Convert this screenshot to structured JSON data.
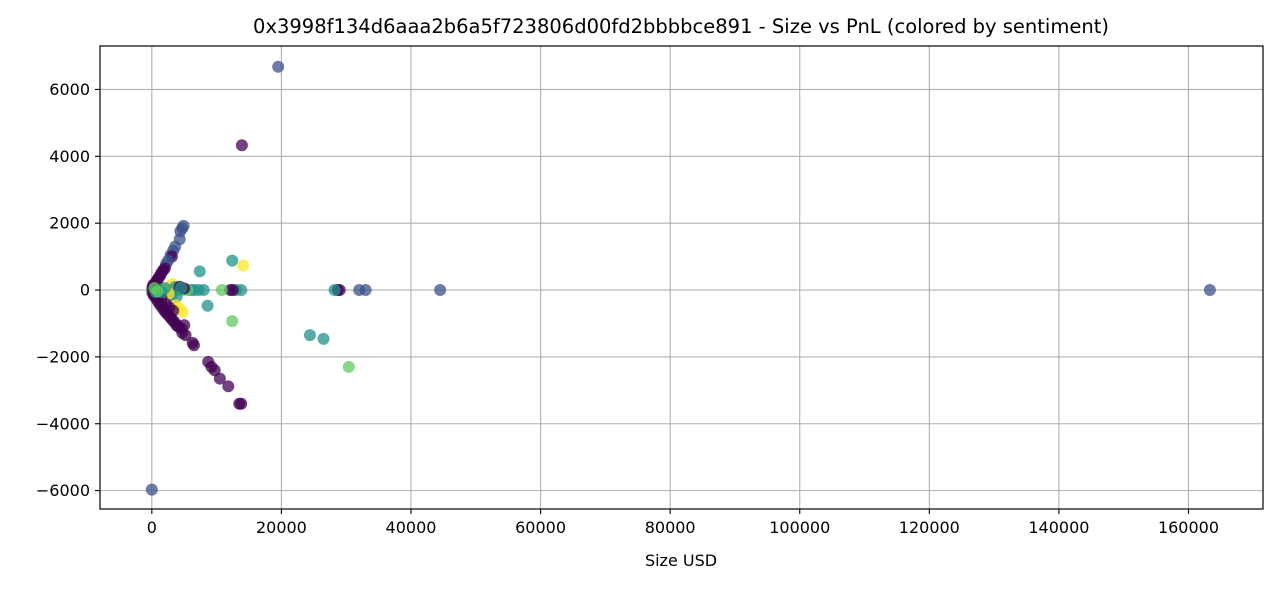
{
  "chart_data": {
    "type": "scatter",
    "title": "0x3998f134d6aaa2b6a5f723806d00fd2bbbbce891 - Size vs PnL (colored by sentiment)",
    "xlabel": "Size USD",
    "ylabel": "",
    "xlim": [
      -8000,
      171500
    ],
    "ylim": [
      -6550,
      7300
    ],
    "xticks": [
      0,
      20000,
      40000,
      60000,
      80000,
      100000,
      120000,
      140000,
      160000
    ],
    "yticks": [
      -6000,
      -4000,
      -2000,
      0,
      2000,
      4000,
      6000
    ],
    "grid": true,
    "legend": "none",
    "colormap": "viridis",
    "colors": {
      "c0": "#440154",
      "c1": "#3b528b",
      "c2": "#21918c",
      "c3": "#5ec962",
      "c4": "#fde725",
      "axis": "#000000",
      "grid": "#b0b0b0"
    },
    "points": [
      {
        "x": 19500,
        "y": 6680,
        "c": 1
      },
      {
        "x": 13900,
        "y": 4330,
        "c": 0
      },
      {
        "x": 0,
        "y": -5970,
        "c": 1
      },
      {
        "x": 163300,
        "y": 0,
        "c": 1
      },
      {
        "x": 44500,
        "y": 0,
        "c": 1
      },
      {
        "x": 33000,
        "y": 0,
        "c": 1
      },
      {
        "x": 32000,
        "y": 0,
        "c": 1
      },
      {
        "x": 29000,
        "y": 0,
        "c": 0
      },
      {
        "x": 28700,
        "y": 0,
        "c": 0
      },
      {
        "x": 28200,
        "y": 0,
        "c": 2
      },
      {
        "x": 30400,
        "y": -2300,
        "c": 3
      },
      {
        "x": 26500,
        "y": -1460,
        "c": 2
      },
      {
        "x": 24400,
        "y": -1350,
        "c": 2
      },
      {
        "x": 13500,
        "y": -3400,
        "c": 0
      },
      {
        "x": 13800,
        "y": -3400,
        "c": 0
      },
      {
        "x": 11800,
        "y": -2880,
        "c": 0
      },
      {
        "x": 10500,
        "y": -2650,
        "c": 0
      },
      {
        "x": 9700,
        "y": -2400,
        "c": 0
      },
      {
        "x": 9200,
        "y": -2300,
        "c": 0
      },
      {
        "x": 8700,
        "y": -2150,
        "c": 0
      },
      {
        "x": 14100,
        "y": 730,
        "c": 4
      },
      {
        "x": 12400,
        "y": 880,
        "c": 2
      },
      {
        "x": 12400,
        "y": -930,
        "c": 3
      },
      {
        "x": 13800,
        "y": 0,
        "c": 2
      },
      {
        "x": 13000,
        "y": 0,
        "c": 2
      },
      {
        "x": 12500,
        "y": 0,
        "c": 0
      },
      {
        "x": 12100,
        "y": 0,
        "c": 0
      },
      {
        "x": 10800,
        "y": 0,
        "c": 3
      },
      {
        "x": 8600,
        "y": -470,
        "c": 2
      },
      {
        "x": 7400,
        "y": 560,
        "c": 2
      },
      {
        "x": 8000,
        "y": 0,
        "c": 2
      },
      {
        "x": 7200,
        "y": 0,
        "c": 2
      },
      {
        "x": 6500,
        "y": 0,
        "c": 2
      },
      {
        "x": 6000,
        "y": 0,
        "c": 2
      },
      {
        "x": 5500,
        "y": 0,
        "c": 3
      },
      {
        "x": 4800,
        "y": 0,
        "c": 3
      },
      {
        "x": 4200,
        "y": 0,
        "c": 3
      },
      {
        "x": 3800,
        "y": 0,
        "c": 3
      },
      {
        "x": 3200,
        "y": 0,
        "c": 3
      },
      {
        "x": 2700,
        "y": 0,
        "c": 3
      },
      {
        "x": 2200,
        "y": 0,
        "c": 3
      },
      {
        "x": 1700,
        "y": 0,
        "c": 3
      },
      {
        "x": 1200,
        "y": 0,
        "c": 3
      },
      {
        "x": 700,
        "y": 0,
        "c": 3
      },
      {
        "x": 300,
        "y": 0,
        "c": 3
      },
      {
        "x": 0,
        "y": 0,
        "c": 3
      },
      {
        "x": 100,
        "y": 80,
        "c": 0
      },
      {
        "x": 200,
        "y": 150,
        "c": 0
      },
      {
        "x": 100,
        "y": -80,
        "c": 0
      },
      {
        "x": 300,
        "y": -160,
        "c": 0
      },
      {
        "x": 4900,
        "y": 1920,
        "c": 1
      },
      {
        "x": 4700,
        "y": 1850,
        "c": 1
      },
      {
        "x": 4400,
        "y": 1760,
        "c": 1
      },
      {
        "x": 4300,
        "y": 1520,
        "c": 1
      },
      {
        "x": 3600,
        "y": 1300,
        "c": 1
      },
      {
        "x": 3300,
        "y": 1180,
        "c": 1
      },
      {
        "x": 2900,
        "y": 1050,
        "c": 1
      },
      {
        "x": 3100,
        "y": 1000,
        "c": 0
      },
      {
        "x": 2500,
        "y": 880,
        "c": 1
      },
      {
        "x": 2200,
        "y": 780,
        "c": 1
      },
      {
        "x": 2000,
        "y": 650,
        "c": 0
      },
      {
        "x": 1800,
        "y": 600,
        "c": 0
      },
      {
        "x": 1500,
        "y": 520,
        "c": 0
      },
      {
        "x": 1300,
        "y": 440,
        "c": 0
      },
      {
        "x": 1100,
        "y": 380,
        "c": 0
      },
      {
        "x": 900,
        "y": 320,
        "c": 0
      },
      {
        "x": 700,
        "y": 260,
        "c": 0
      },
      {
        "x": 500,
        "y": 200,
        "c": 0
      },
      {
        "x": 3200,
        "y": 180,
        "c": 4
      },
      {
        "x": 2800,
        "y": 100,
        "c": 4
      },
      {
        "x": 2300,
        "y": 50,
        "c": 4
      },
      {
        "x": 3600,
        "y": 90,
        "c": 2
      },
      {
        "x": 4300,
        "y": 100,
        "c": 0
      },
      {
        "x": 5000,
        "y": 50,
        "c": 0
      },
      {
        "x": 4500,
        "y": 60,
        "c": 2
      },
      {
        "x": 3800,
        "y": -200,
        "c": 2
      },
      {
        "x": 3000,
        "y": -150,
        "c": 2
      },
      {
        "x": 2600,
        "y": -110,
        "c": 4
      },
      {
        "x": 4800,
        "y": -650,
        "c": 4
      },
      {
        "x": 4200,
        "y": -550,
        "c": 4
      },
      {
        "x": 3700,
        "y": -460,
        "c": 4
      },
      {
        "x": 500,
        "y": -200,
        "c": 0
      },
      {
        "x": 800,
        "y": -300,
        "c": 0
      },
      {
        "x": 1100,
        "y": -390,
        "c": 0
      },
      {
        "x": 1400,
        "y": -470,
        "c": 0
      },
      {
        "x": 1700,
        "y": -550,
        "c": 0
      },
      {
        "x": 2000,
        "y": -630,
        "c": 0
      },
      {
        "x": 2300,
        "y": -700,
        "c": 0
      },
      {
        "x": 2600,
        "y": -760,
        "c": 0
      },
      {
        "x": 2900,
        "y": -830,
        "c": 0
      },
      {
        "x": 3200,
        "y": -900,
        "c": 0
      },
      {
        "x": 3500,
        "y": -960,
        "c": 0
      },
      {
        "x": 3800,
        "y": -1050,
        "c": 0
      },
      {
        "x": 4100,
        "y": -1100,
        "c": 0
      },
      {
        "x": 4600,
        "y": -1150,
        "c": 0
      },
      {
        "x": 5000,
        "y": -1050,
        "c": 0
      },
      {
        "x": 4700,
        "y": -1280,
        "c": 0
      },
      {
        "x": 5200,
        "y": -1350,
        "c": 0
      },
      {
        "x": 6300,
        "y": -1580,
        "c": 0
      },
      {
        "x": 6500,
        "y": -1650,
        "c": 0
      },
      {
        "x": 2200,
        "y": -420,
        "c": 0
      },
      {
        "x": 2700,
        "y": -520,
        "c": 0
      },
      {
        "x": 3300,
        "y": -620,
        "c": 0
      },
      {
        "x": 1500,
        "y": -250,
        "c": 0
      },
      {
        "x": 1000,
        "y": -150,
        "c": 0
      },
      {
        "x": 600,
        "y": -60,
        "c": 2
      },
      {
        "x": 1500,
        "y": -60,
        "c": 2
      },
      {
        "x": 2000,
        "y": 60,
        "c": 2
      },
      {
        "x": 400,
        "y": 60,
        "c": 3
      },
      {
        "x": 900,
        "y": -40,
        "c": 3
      }
    ]
  }
}
